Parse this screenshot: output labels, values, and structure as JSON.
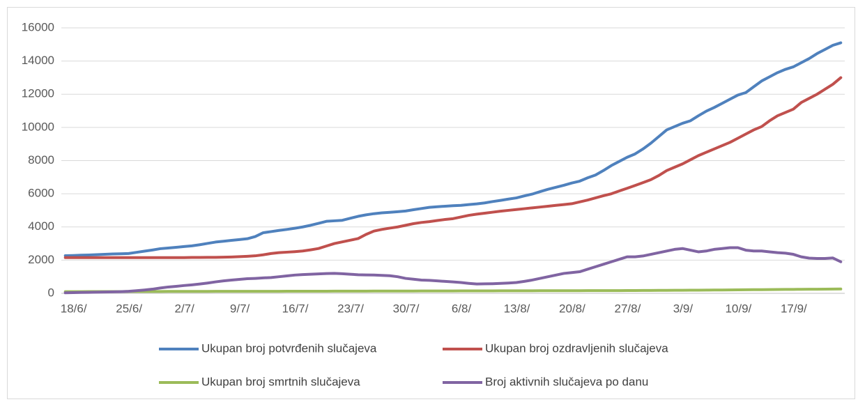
{
  "chart_data": {
    "type": "line",
    "categories": [
      "18/6/",
      null,
      null,
      null,
      null,
      null,
      null,
      "25/6/",
      null,
      null,
      null,
      null,
      null,
      null,
      "2/7/",
      null,
      null,
      null,
      null,
      null,
      null,
      "9/7/",
      null,
      null,
      null,
      null,
      null,
      null,
      "16/7/",
      null,
      null,
      null,
      null,
      null,
      null,
      "23/7/",
      null,
      null,
      null,
      null,
      null,
      null,
      "30/7/",
      null,
      null,
      null,
      null,
      null,
      null,
      "6/8/",
      null,
      null,
      null,
      null,
      null,
      null,
      "13/8/",
      null,
      null,
      null,
      null,
      null,
      null,
      "20/8/",
      null,
      null,
      null,
      null,
      null,
      null,
      "27/8/",
      null,
      null,
      null,
      null,
      null,
      null,
      "3/9/",
      null,
      null,
      null,
      null,
      null,
      null,
      "10/9/",
      null,
      null,
      null,
      null,
      null,
      null,
      "17/9/",
      null,
      null,
      null,
      null,
      null,
      null,
      null
    ],
    "series": [
      {
        "name": "Ukupan broj potvrđenih slučajeva",
        "color": "#4f81bd",
        "values": [
          2270,
          2280,
          2300,
          2310,
          2330,
          2350,
          2370,
          2385,
          2400,
          2470,
          2540,
          2610,
          2690,
          2730,
          2770,
          2820,
          2860,
          2930,
          3010,
          3090,
          3140,
          3190,
          3240,
          3290,
          3420,
          3650,
          3720,
          3790,
          3850,
          3920,
          4000,
          4100,
          4220,
          4340,
          4370,
          4400,
          4520,
          4640,
          4730,
          4800,
          4850,
          4880,
          4920,
          4960,
          5040,
          5110,
          5180,
          5220,
          5250,
          5280,
          5300,
          5350,
          5390,
          5450,
          5530,
          5600,
          5680,
          5750,
          5870,
          5980,
          6130,
          6270,
          6390,
          6510,
          6650,
          6760,
          6960,
          7130,
          7400,
          7700,
          7950,
          8200,
          8400,
          8700,
          9050,
          9450,
          9850,
          10050,
          10250,
          10400,
          10700,
          10980,
          11200,
          11450,
          11700,
          11950,
          12100,
          12450,
          12800,
          13050,
          13300,
          13500,
          13650,
          13900,
          14150,
          14450,
          14700,
          14950,
          15100
        ]
      },
      {
        "name": "Ukupan broj ozdravljenih slučajeva",
        "color": "#c0504d",
        "values": [
          2150,
          2150,
          2150,
          2150,
          2150,
          2150,
          2150,
          2150,
          2150,
          2150,
          2150,
          2150,
          2150,
          2150,
          2150,
          2150,
          2160,
          2160,
          2170,
          2170,
          2180,
          2190,
          2210,
          2230,
          2260,
          2320,
          2400,
          2450,
          2480,
          2510,
          2550,
          2620,
          2700,
          2850,
          3000,
          3100,
          3200,
          3300,
          3550,
          3750,
          3850,
          3930,
          4000,
          4100,
          4200,
          4270,
          4320,
          4390,
          4450,
          4500,
          4600,
          4700,
          4770,
          4830,
          4890,
          4950,
          5000,
          5050,
          5100,
          5150,
          5200,
          5250,
          5300,
          5350,
          5400,
          5510,
          5620,
          5750,
          5880,
          6000,
          6170,
          6330,
          6500,
          6670,
          6850,
          7100,
          7400,
          7600,
          7800,
          8050,
          8300,
          8500,
          8700,
          8900,
          9100,
          9350,
          9600,
          9850,
          10050,
          10400,
          10700,
          10900,
          11100,
          11500,
          11750,
          12000,
          12300,
          12600,
          13000
        ]
      },
      {
        "name": "Ukupan broj smrtnih slučajeva",
        "color": "#9bbb59",
        "values": [
          100,
          101,
          102,
          103,
          104,
          105,
          106,
          107,
          108,
          109,
          110,
          111,
          112,
          113,
          114,
          115,
          116,
          117,
          118,
          119,
          120,
          120,
          121,
          121,
          122,
          122,
          123,
          123,
          124,
          124,
          125,
          126,
          127,
          128,
          129,
          130,
          131,
          132,
          133,
          134,
          135,
          136,
          137,
          138,
          139,
          140,
          141,
          142,
          143,
          144,
          145,
          146,
          147,
          148,
          149,
          150,
          151,
          152,
          153,
          154,
          155,
          156,
          157,
          158,
          159,
          160,
          161,
          162,
          163,
          164,
          165,
          167,
          170,
          172,
          175,
          177,
          180,
          182,
          185,
          187,
          190,
          194,
          198,
          202,
          206,
          210,
          214,
          218,
          222,
          226,
          230,
          234,
          238,
          241,
          245,
          249,
          252,
          256,
          260
        ]
      },
      {
        "name": "Broj aktivnih slučajeva po danu",
        "color": "#8064a2",
        "values": [
          30,
          40,
          50,
          60,
          70,
          80,
          90,
          100,
          120,
          160,
          200,
          250,
          320,
          380,
          420,
          470,
          510,
          560,
          620,
          690,
          750,
          800,
          840,
          880,
          900,
          930,
          950,
          1000,
          1050,
          1100,
          1130,
          1150,
          1170,
          1190,
          1200,
          1180,
          1150,
          1120,
          1110,
          1100,
          1080,
          1060,
          1000,
          900,
          850,
          800,
          780,
          750,
          720,
          690,
          650,
          600,
          560,
          570,
          580,
          600,
          620,
          650,
          720,
          800,
          900,
          1000,
          1100,
          1200,
          1250,
          1300,
          1450,
          1600,
          1750,
          1900,
          2050,
          2200,
          2200,
          2250,
          2350,
          2450,
          2550,
          2650,
          2700,
          2600,
          2500,
          2550,
          2650,
          2700,
          2750,
          2750,
          2600,
          2550,
          2550,
          2500,
          2450,
          2420,
          2350,
          2200,
          2120,
          2100,
          2100,
          2130,
          1900
        ]
      }
    ],
    "ylim": [
      0,
      16000
    ],
    "yticks": [
      0,
      2000,
      4000,
      6000,
      8000,
      10000,
      12000,
      14000,
      16000
    ],
    "grid": true,
    "legend": "bottom"
  }
}
